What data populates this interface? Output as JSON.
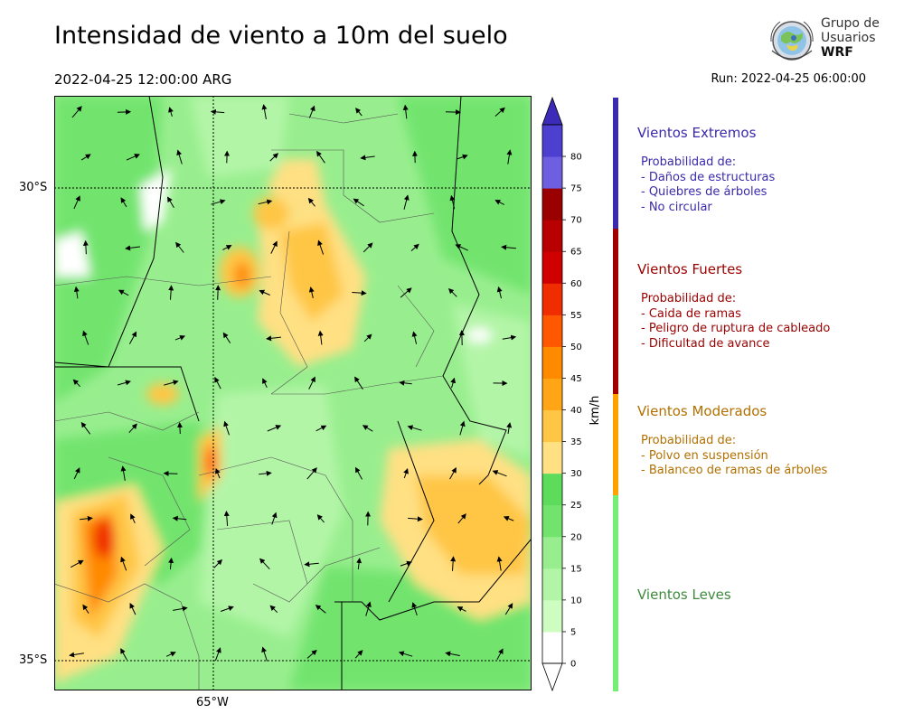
{
  "header": {
    "title": "Intensidad de viento a 10m del suelo",
    "valid_time": "2022-04-25 12:00:00 ARG",
    "run_time": "Run: 2022-04-25 06:00:00"
  },
  "logo": {
    "line1": "Grupo de",
    "line2": "Usuarios",
    "line3": "WRF"
  },
  "map": {
    "lat_labels": [
      "30°S",
      "35°S"
    ],
    "lon_labels": [
      "65°W"
    ]
  },
  "colorbar": {
    "unit_label": "km/h",
    "ticks": [
      "0",
      "5",
      "10",
      "15",
      "20",
      "25",
      "30",
      "35",
      "40",
      "45",
      "50",
      "55",
      "60",
      "65",
      "70",
      "75",
      "80"
    ],
    "colors": [
      "#ffffff",
      "#cdfdc0",
      "#b3f5a7",
      "#98ee8e",
      "#72e46e",
      "#5ddc5c",
      "#ffe083",
      "#ffc645",
      "#ffa516",
      "#ff8a00",
      "#ff5800",
      "#f02d00",
      "#d00000",
      "#b80000",
      "#9a0000",
      "#6e5ee0",
      "#4d3fd0",
      "#3c2bb8"
    ],
    "overflow_color": "#3c2bb8"
  },
  "categories": [
    {
      "title": "Vientos Extremos",
      "color": "#3a2aac",
      "bar_color": "#3a2aac",
      "lines": [
        "Probabilidad de:",
        "- Daños de estructuras",
        "- Quiebres de árboles",
        "- No circular"
      ]
    },
    {
      "title": "Vientos Fuertes",
      "color": "#9a0000",
      "bar_color": "#a00000",
      "lines": [
        "Probabilidad de:",
        "- Caida de ramas",
        "- Peligro de ruptura de cableado",
        "- Dificultad de avance"
      ]
    },
    {
      "title": "Vientos Moderados",
      "color": "#b27000",
      "bar_color": "#ffa200",
      "lines": [
        "Probabilidad de:",
        "- Polvo en suspensión",
        "- Balanceo de ramas de árboles"
      ]
    },
    {
      "title": "Vientos Leves",
      "color": "#3e8a3e",
      "bar_color": "#74ee74",
      "lines": []
    }
  ]
}
